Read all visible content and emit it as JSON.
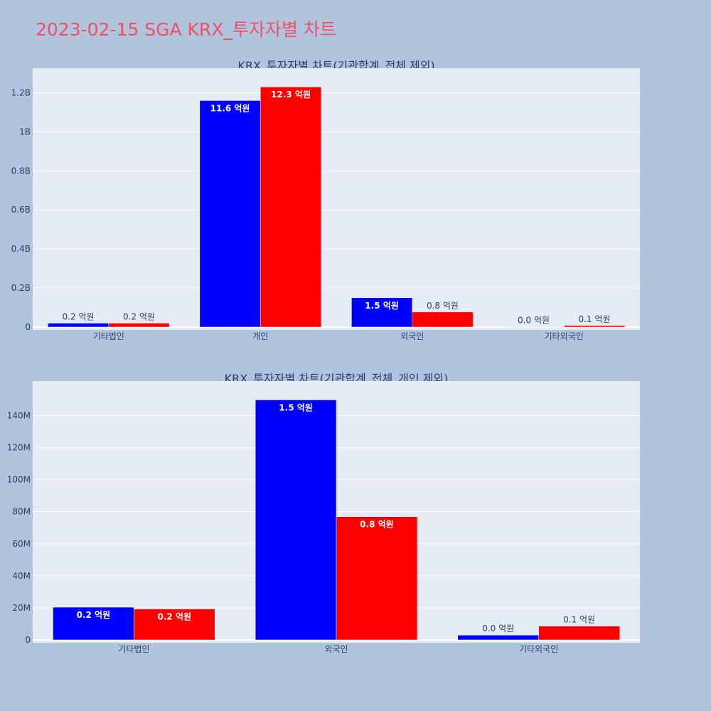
{
  "title": "2023-02-15 SGA KRX_투자자별 차트",
  "colors": {
    "page_bg": "#b0c4de",
    "plot_bg": "#e5ecf6",
    "title": "#ef5066",
    "text": "#2a3f5f",
    "series_blue": "#0000ff",
    "series_red": "#ff0000"
  },
  "chart_data": [
    {
      "type": "bar",
      "title": "KRX_투자자별 차트(기관합계_전체 제외)",
      "categories": [
        "기타법인",
        "개인",
        "외국인",
        "기타외국인"
      ],
      "series": [
        {
          "values": [
            20000000,
            1160000000,
            150000000,
            2000000
          ],
          "labels": [
            "0.2 억원",
            "11.6 억원",
            "1.5 억원",
            "0.0 억원"
          ],
          "color": "#0000ff"
        },
        {
          "values": [
            20000000,
            1230000000,
            77000000,
            8000000
          ],
          "labels": [
            "0.2 억원",
            "12.3 억원",
            "0.8 억원",
            "0.1 억원"
          ],
          "color": "#ff0000"
        }
      ],
      "ylim": [
        0,
        1300000000
      ],
      "ytick_values": [
        0,
        200000000,
        400000000,
        600000000,
        800000000,
        1000000000,
        1200000000
      ],
      "ytick_labels": [
        "0",
        "0.2B",
        "0.4B",
        "0.6B",
        "0.8B",
        "1B",
        "1.2B"
      ],
      "grid": true,
      "legend": "none"
    },
    {
      "type": "bar",
      "title": "KRX_투자자별 차트(기관합계_전체_개인 제외)",
      "categories": [
        "기타법인",
        "외국인",
        "기타외국인"
      ],
      "series": [
        {
          "values": [
            20400000,
            149800000,
            3000000
          ],
          "labels": [
            "0.2 억원",
            "1.5 억원",
            "0.0 억원"
          ],
          "color": "#0000ff"
        },
        {
          "values": [
            19300000,
            76900000,
            8600000
          ],
          "labels": [
            "0.2 억원",
            "0.8 억원",
            "0.1 억원"
          ],
          "color": "#ff0000"
        }
      ],
      "ylim": [
        0,
        158000000
      ],
      "ytick_values": [
        0,
        20000000,
        40000000,
        60000000,
        80000000,
        100000000,
        120000000,
        140000000
      ],
      "ytick_labels": [
        "0",
        "20M",
        "40M",
        "60M",
        "80M",
        "100M",
        "120M",
        "140M"
      ],
      "grid": true,
      "legend": "none"
    }
  ]
}
